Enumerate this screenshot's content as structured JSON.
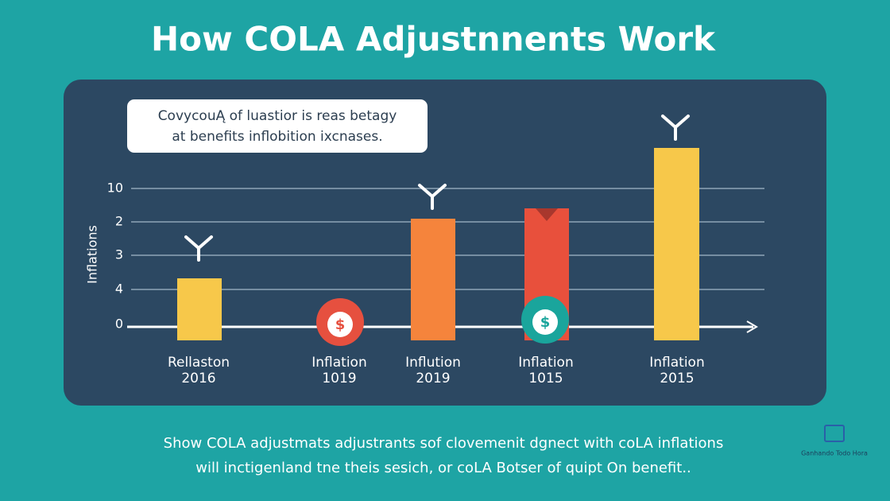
{
  "title": "How COLA Adjustnnents Work",
  "callout": {
    "lines": [
      "CovycouĄ of luastior is reas betagy",
      "at benefits inflobition ixcnases."
    ]
  },
  "axis": {
    "label": "Inflations",
    "ticks": [
      "10",
      "2",
      "3",
      "4",
      "0"
    ]
  },
  "categories": [
    {
      "label": "Rellaston",
      "year": "2016"
    },
    {
      "label": "Inflation",
      "year": "1019"
    },
    {
      "label": "Inflution",
      "year": "2019"
    },
    {
      "label": "Inflation",
      "year": "1015"
    },
    {
      "label": "Inflation",
      "year": "2015"
    }
  ],
  "footer": {
    "lines": [
      "Show COLA adjustmats adjustrants sof clovemenit dgnect with coLA inflations",
      "will inctigenland tne theis sesich, or coLA Botser of quipt On benefit.."
    ]
  },
  "watermark": "Ganhando Todo Hora"
}
